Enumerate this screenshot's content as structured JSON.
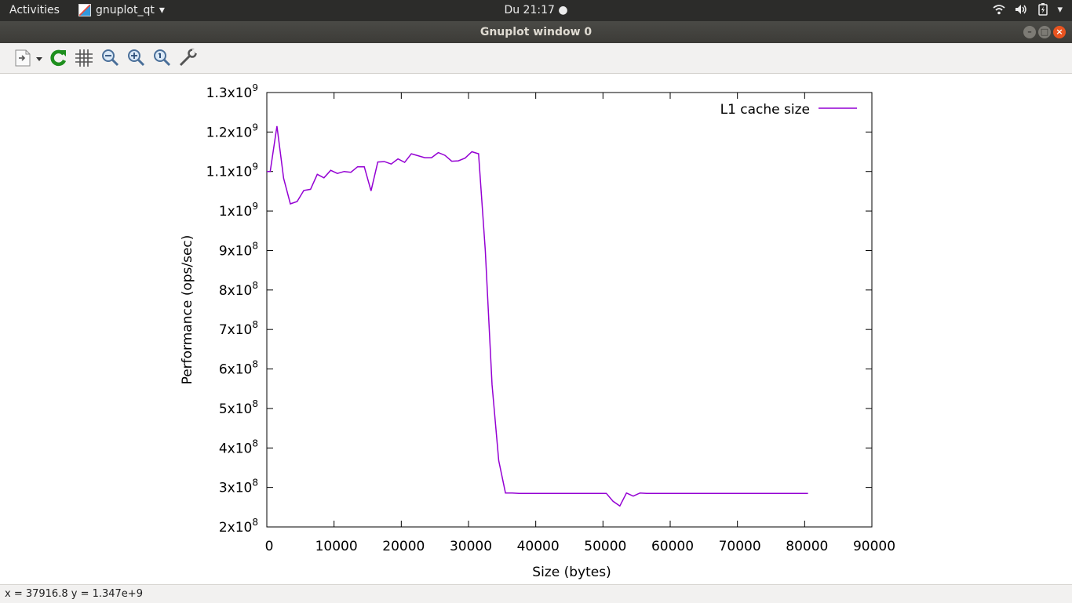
{
  "topbar": {
    "activities": "Activities",
    "app_name": "gnuplot_qt",
    "clock": "Du 21:17"
  },
  "window": {
    "title": "Gnuplot window 0"
  },
  "toolbar": {
    "icons": [
      "export-icon",
      "replot-icon",
      "grid-icon",
      "zoom-previous-icon",
      "zoom-next-icon",
      "autoscale-icon",
      "settings-icon"
    ]
  },
  "status": {
    "text": "x = 37916.8 y = 1.347e+9"
  },
  "colors": {
    "series": "#9400d3",
    "accent": "#e95420"
  },
  "chart_data": {
    "type": "line",
    "title": "",
    "xlabel": "Size (bytes)",
    "ylabel": "Performance (ops/sec)",
    "xlim": [
      0,
      90000
    ],
    "ylim": [
      200000000,
      1300000000
    ],
    "xticks": [
      0,
      10000,
      20000,
      30000,
      40000,
      50000,
      60000,
      70000,
      80000,
      90000
    ],
    "xtick_labels": [
      "0",
      "10000",
      "20000",
      "30000",
      "40000",
      "50000",
      "60000",
      "70000",
      "80000",
      "90000"
    ],
    "yticks": [
      {
        "value": 200000000,
        "mant": "2x10",
        "exp": "8"
      },
      {
        "value": 300000000,
        "mant": "3x10",
        "exp": "8"
      },
      {
        "value": 400000000,
        "mant": "4x10",
        "exp": "8"
      },
      {
        "value": 500000000,
        "mant": "5x10",
        "exp": "8"
      },
      {
        "value": 600000000,
        "mant": "6x10",
        "exp": "8"
      },
      {
        "value": 700000000,
        "mant": "7x10",
        "exp": "8"
      },
      {
        "value": 800000000,
        "mant": "8x10",
        "exp": "8"
      },
      {
        "value": 900000000,
        "mant": "9x10",
        "exp": "8"
      },
      {
        "value": 1000000000,
        "mant": "1x10",
        "exp": "9"
      },
      {
        "value": 1100000000,
        "mant": "1.1x10",
        "exp": "9"
      },
      {
        "value": 1200000000,
        "mant": "1.2x10",
        "exp": "9"
      },
      {
        "value": 1300000000,
        "mant": "1.3x10",
        "exp": "9"
      }
    ],
    "legend_position": "top-right",
    "series": [
      {
        "name": "L1 cache size",
        "x": [
          0,
          500,
          1500,
          2500,
          3500,
          4500,
          5500,
          6500,
          7500,
          8500,
          9500,
          10500,
          11500,
          12500,
          13500,
          14500,
          15500,
          16500,
          17500,
          18500,
          19500,
          20500,
          21500,
          22500,
          23500,
          24500,
          25500,
          26500,
          27500,
          28500,
          29500,
          30500,
          31500,
          32500,
          33500,
          34500,
          35500,
          36500,
          37500,
          38500,
          39500,
          40500,
          41500,
          42500,
          43500,
          44500,
          45500,
          46500,
          47500,
          48500,
          49500,
          50500,
          51500,
          52500,
          53500,
          54500,
          55500,
          56500,
          57500,
          58500,
          59500,
          60500,
          61500,
          62500,
          63500,
          64500,
          65500,
          66500,
          67500,
          68500,
          69500,
          70500,
          71500,
          72500,
          73500,
          74500,
          75500,
          76500,
          77500,
          78500,
          79500,
          80500
        ],
        "y": [
          1100000000,
          1100000000,
          1215000000,
          1083000000,
          1018000000,
          1024000000,
          1052000000,
          1055000000,
          1093000000,
          1084000000,
          1103000000,
          1095000000,
          1100000000,
          1098000000,
          1112000000,
          1112000000,
          1051000000,
          1124000000,
          1125000000,
          1119000000,
          1132000000,
          1123000000,
          1145000000,
          1140000000,
          1135000000,
          1135000000,
          1148000000,
          1141000000,
          1126000000,
          1127000000,
          1134000000,
          1150000000,
          1145000000,
          900000000,
          560000000,
          368000000,
          286000000,
          286000000,
          285000000,
          285000000,
          285000000,
          285000000,
          285000000,
          285000000,
          285000000,
          285000000,
          285000000,
          285000000,
          285000000,
          285000000,
          285000000,
          285000000,
          265000000,
          253000000,
          286000000,
          278000000,
          286000000,
          285000000,
          285000000,
          285000000,
          285000000,
          285000000,
          285000000,
          285000000,
          285000000,
          285000000,
          285000000,
          285000000,
          285000000,
          285000000,
          285000000,
          285000000,
          285000000,
          285000000,
          285000000,
          285000000,
          285000000,
          285000000,
          285000000,
          285000000,
          285000000,
          285000000
        ]
      }
    ]
  }
}
